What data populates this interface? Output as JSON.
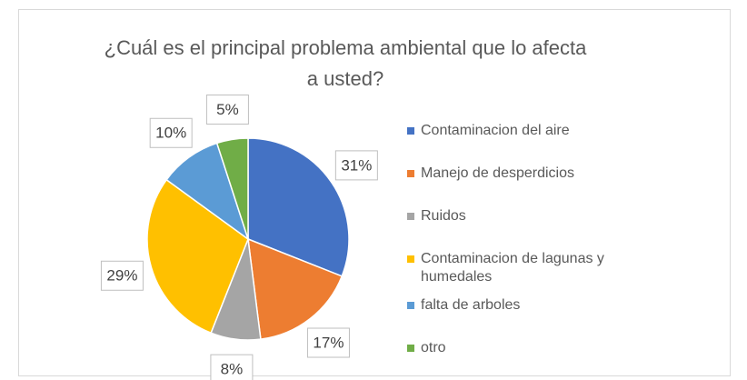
{
  "chart_data": {
    "type": "pie",
    "title": "¿Cuál es el principal problema ambiental que lo afecta a usted?",
    "categories": [
      "Contaminacion del aire",
      "Manejo de desperdicios",
      "Ruidos",
      "Contaminacion de lagunas y humedales",
      "falta de arboles",
      "otro"
    ],
    "values": [
      31,
      17,
      8,
      29,
      10,
      5
    ],
    "value_labels": [
      "31%",
      "17%",
      "8%",
      "29%",
      "10%",
      "5%"
    ],
    "colors": [
      "#4472c4",
      "#ed7d31",
      "#a5a5a5",
      "#ffc000",
      "#5b9bd5",
      "#70ad47"
    ],
    "legend": "right"
  }
}
